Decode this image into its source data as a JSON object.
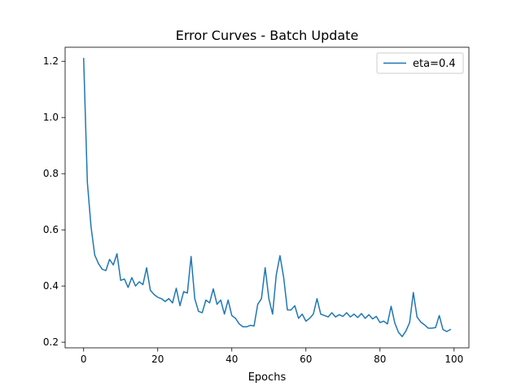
{
  "chart_data": {
    "type": "line",
    "title": "Error Curves - Batch Update",
    "xlabel": "Epochs",
    "ylabel": "",
    "xlim": [
      -5,
      104
    ],
    "ylim": [
      0.18,
      1.25
    ],
    "xticks": [
      0,
      20,
      40,
      60,
      80,
      100
    ],
    "xtick_labels": [
      "0",
      "20",
      "40",
      "60",
      "80",
      "100"
    ],
    "yticks": [
      0.2,
      0.4,
      0.6,
      0.8,
      1.0,
      1.2
    ],
    "ytick_labels": [
      "0.2",
      "0.4",
      "0.6",
      "0.8",
      "1.0",
      "1.2"
    ],
    "grid": false,
    "legend_position": "top-right",
    "series": [
      {
        "name": "eta=0.4",
        "color": "#1f77b4",
        "x": [
          0,
          1,
          2,
          3,
          4,
          5,
          6,
          7,
          8,
          9,
          10,
          11,
          12,
          13,
          14,
          15,
          16,
          17,
          18,
          19,
          20,
          21,
          22,
          23,
          24,
          25,
          26,
          27,
          28,
          29,
          30,
          31,
          32,
          33,
          34,
          35,
          36,
          37,
          38,
          39,
          40,
          41,
          42,
          43,
          44,
          45,
          46,
          47,
          48,
          49,
          50,
          51,
          52,
          53,
          54,
          55,
          56,
          57,
          58,
          59,
          60,
          61,
          62,
          63,
          64,
          65,
          66,
          67,
          68,
          69,
          70,
          71,
          72,
          73,
          74,
          75,
          76,
          77,
          78,
          79,
          80,
          81,
          82,
          83,
          84,
          85,
          86,
          87,
          88,
          89,
          90,
          91,
          92,
          93,
          94,
          95,
          96,
          97,
          98,
          99
        ],
        "values": [
          1.21,
          0.77,
          0.61,
          0.51,
          0.48,
          0.46,
          0.455,
          0.495,
          0.475,
          0.515,
          0.42,
          0.425,
          0.395,
          0.43,
          0.4,
          0.415,
          0.405,
          0.465,
          0.385,
          0.37,
          0.36,
          0.355,
          0.345,
          0.355,
          0.34,
          0.392,
          0.33,
          0.38,
          0.375,
          0.505,
          0.355,
          0.31,
          0.305,
          0.35,
          0.34,
          0.39,
          0.335,
          0.35,
          0.3,
          0.35,
          0.295,
          0.285,
          0.265,
          0.255,
          0.255,
          0.26,
          0.258,
          0.335,
          0.355,
          0.465,
          0.355,
          0.3,
          0.44,
          0.508,
          0.43,
          0.315,
          0.315,
          0.33,
          0.285,
          0.3,
          0.275,
          0.285,
          0.3,
          0.355,
          0.3,
          0.295,
          0.29,
          0.305,
          0.29,
          0.298,
          0.292,
          0.305,
          0.29,
          0.3,
          0.288,
          0.302,
          0.285,
          0.298,
          0.283,
          0.292,
          0.27,
          0.275,
          0.265,
          0.328,
          0.268,
          0.235,
          0.22,
          0.24,
          0.27,
          0.377,
          0.29,
          0.272,
          0.262,
          0.25,
          0.25,
          0.252,
          0.295,
          0.245,
          0.238,
          0.245
        ]
      }
    ]
  }
}
